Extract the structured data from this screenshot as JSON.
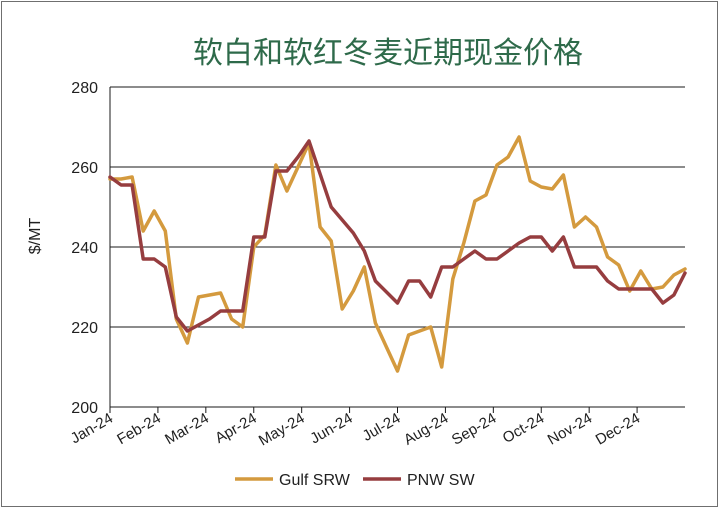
{
  "chart_data": {
    "type": "line",
    "title": "软白和软红冬麦近期现金价格",
    "xlabel": "",
    "ylabel": "$/MT",
    "ylim": [
      200,
      280
    ],
    "yticks": [
      "200",
      "220",
      "240",
      "260",
      "280"
    ],
    "months": [
      "Jan-24",
      "Feb-24",
      "Mar-24",
      "Apr-24",
      "May-24",
      "Jun-24",
      "Jul-24",
      "Aug-24",
      "Sep-24",
      "Oct-24",
      "Nov-24",
      "Dec-24"
    ],
    "x_unit": "weeks",
    "x_range": [
      0,
      52
    ],
    "grid": "horizontal",
    "legend_position": "bottom",
    "series": [
      {
        "name": "Gulf SRW",
        "color": "#d49a3e",
        "x": [
          0,
          1,
          2,
          3,
          4,
          5,
          6,
          7,
          8,
          9,
          10,
          11,
          12,
          13,
          14,
          15,
          16,
          17,
          18,
          19,
          20,
          21,
          22,
          23,
          24,
          25,
          26,
          27,
          28,
          29,
          30,
          31,
          32,
          33,
          34,
          35,
          36,
          37,
          38,
          39,
          40,
          41,
          42,
          43,
          44,
          45,
          46,
          47,
          48,
          49,
          50,
          51,
          52
        ],
        "values": [
          257,
          257,
          257.5,
          244,
          249,
          244,
          222,
          216,
          227.5,
          228,
          228.5,
          222,
          220,
          240,
          243,
          260.5,
          254,
          260,
          266,
          245,
          241.5,
          224.5,
          229,
          235,
          221,
          215,
          209,
          218,
          219,
          220,
          210,
          232,
          241,
          251.5,
          253,
          260.5,
          262.5,
          267.5,
          256.5,
          255,
          254.5,
          258,
          245,
          247.5,
          245,
          237.5,
          235.5,
          229,
          234,
          229.5,
          230,
          233,
          234.5
        ]
      },
      {
        "name": "PNW SW",
        "color": "#963d3f",
        "x": [
          0,
          1,
          2,
          3,
          4,
          5,
          6,
          7,
          8,
          9,
          10,
          11,
          12,
          13,
          14,
          15,
          16,
          17,
          18,
          20,
          22,
          23,
          24,
          26,
          27,
          28,
          29,
          30,
          31,
          32,
          33,
          34,
          35,
          36,
          37,
          38,
          39,
          40,
          41,
          42,
          43,
          44,
          45,
          46,
          47,
          48,
          49,
          50,
          51,
          52
        ],
        "values": [
          257.5,
          255.5,
          255.5,
          237,
          237,
          235,
          222.5,
          219,
          220.5,
          222,
          224,
          224,
          224,
          242.5,
          242.5,
          259,
          259,
          262.5,
          266.5,
          250,
          243.5,
          239,
          231.5,
          226,
          231.5,
          231.5,
          227.5,
          235,
          235,
          237,
          239,
          237,
          237,
          239,
          241,
          242.5,
          242.5,
          239,
          242.5,
          235,
          235,
          235,
          231.5,
          229.5,
          229.5,
          229.5,
          229.5,
          226,
          228,
          233.5
        ]
      }
    ]
  }
}
